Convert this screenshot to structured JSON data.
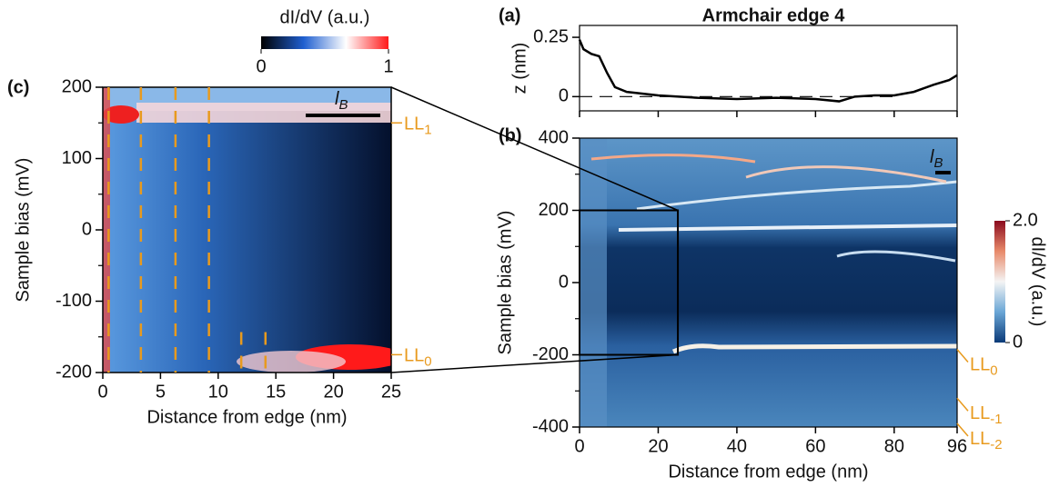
{
  "chart_data": [
    {
      "type": "heatmap",
      "panel_label": "(c)",
      "xlabel": "Distance from edge (nm)",
      "ylabel": "Sample bias (mV)",
      "xlim": [
        0,
        25
      ],
      "ylim": [
        -200,
        200
      ],
      "xticks": [
        0,
        5,
        10,
        15,
        20,
        25
      ],
      "yticks": [
        -200,
        -100,
        0,
        100,
        200
      ],
      "yminorticks": [
        -150,
        -50,
        50,
        150
      ],
      "colorbar": {
        "label": "dI/dV (a.u.)",
        "lim": [
          0,
          1
        ],
        "ticks": [
          0,
          1
        ],
        "colors": [
          "#000000",
          "#1f5fd0",
          "#ffffff",
          "#ff1a1a"
        ]
      },
      "dashed_x": [
        0.5,
        3.3,
        6.3,
        9.2
      ],
      "dashed_x_lower": [
        12,
        14.1
      ],
      "dash_color": "#e89a1e",
      "levels": [
        {
          "text": "LL",
          "sub": "1",
          "energy": 150
        },
        {
          "text": "LL",
          "sub": "0",
          "energy": -175
        }
      ],
      "scale_bar": {
        "text": "l",
        "sub": "B"
      }
    },
    {
      "type": "line",
      "panel_label": "(a)",
      "title": "Armchair edge 4",
      "ylabel": "z (nm)",
      "xlim": [
        0,
        96
      ],
      "ylim": [
        -0.06,
        0.3
      ],
      "xticks": [
        0,
        20,
        40,
        60,
        80,
        96
      ],
      "show_xtick_labels": false,
      "yticks": [
        0,
        0.25
      ],
      "color": "#000000",
      "x": [
        0,
        1,
        3,
        5,
        7,
        9,
        12,
        20,
        30,
        40,
        50,
        60,
        66,
        70,
        75,
        80,
        85,
        90,
        94,
        96
      ],
      "y": [
        0.24,
        0.2,
        0.18,
        0.17,
        0.1,
        0.04,
        0.02,
        0.005,
        -0.005,
        -0.01,
        -0.005,
        -0.01,
        -0.02,
        0,
        0.005,
        0.005,
        0.02,
        0.05,
        0.07,
        0.09
      ]
    },
    {
      "type": "heatmap",
      "panel_label": "(b)",
      "xlabel": "Distance from edge (nm)",
      "ylabel": "Sample bias (mV)",
      "xlim": [
        0,
        96
      ],
      "ylim": [
        -400,
        400
      ],
      "xticks": [
        0,
        20,
        40,
        60,
        80,
        96
      ],
      "yticks": [
        -400,
        -200,
        0,
        200,
        400
      ],
      "yminorticks": [
        -300,
        -100,
        100,
        300
      ],
      "colorbar": {
        "label": "dI/dV (a.u.)",
        "lim": [
          0,
          2
        ],
        "ticks": [
          0,
          {
            "value": 2,
            "label": "2.0"
          }
        ],
        "colors": [
          "#0a3a78",
          "#6aa6d6",
          "#f4f4f4",
          "#e88a6a",
          "#8a0a1e"
        ]
      },
      "levels": [
        {
          "text": "LL",
          "sub": "0",
          "energy": -185
        },
        {
          "text": "LL",
          "sub": "-1",
          "energy": -320
        },
        {
          "text": "LL",
          "sub": "-2",
          "energy": -390
        }
      ],
      "level_color": "#e89a1e",
      "zoom_box": {
        "xlim": [
          0,
          25
        ],
        "ylim": [
          -200,
          200
        ]
      },
      "scale_bar": {
        "text": "l",
        "sub": "B"
      }
    }
  ]
}
